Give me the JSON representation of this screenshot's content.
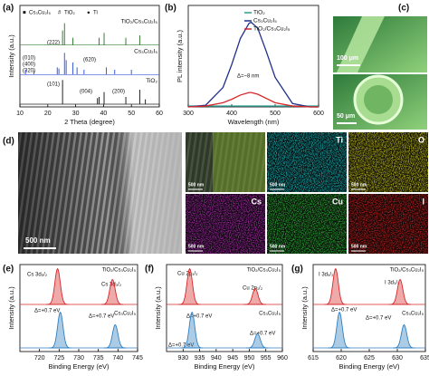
{
  "chart_data": [
    {
      "type": "stick",
      "panel": "(a)",
      "xlabel": "2 Theta (degree)",
      "ylabel": "Intensity (a.u.)",
      "xlim": [
        10,
        60
      ],
      "xticks": [
        10,
        20,
        30,
        40,
        50,
        60
      ],
      "markers": [
        {
          "symbol": "■",
          "text": "Cs₃Cu₂I₅",
          "color": "#2ca02c"
        },
        {
          "symbol": "#",
          "text": "TiO₂",
          "color": "#d62728"
        },
        {
          "symbol": "●",
          "text": "Ti",
          "color": "#000000"
        }
      ],
      "series": [
        {
          "name": "TiO₂/Cs₃Cu₂I₅",
          "color": "#3a7d3a",
          "x": [
            25.3,
            26,
            29,
            38.4,
            40.2,
            48,
            53
          ],
          "values": [
            0.6,
            0.9,
            0.3,
            0.3,
            0.5,
            0.3,
            0.4
          ]
        },
        {
          "name": "Cs₃Cu₂I₅",
          "color": "#3b5bdb",
          "x": [
            12,
            15,
            23.4,
            24,
            26,
            26.6,
            29,
            30.5,
            33,
            41,
            44,
            50
          ],
          "values": [
            0.2,
            0.15,
            0.3,
            0.25,
            0.9,
            0.6,
            0.5,
            0.3,
            0.2,
            0.3,
            0.2,
            0.2
          ]
        },
        {
          "name": "TiO₂",
          "color": "#222222",
          "x": [
            25.3,
            37.8,
            38.4,
            40.2,
            48,
            53,
            55
          ],
          "values": [
            1.0,
            0.25,
            0.3,
            0.5,
            0.3,
            0.6,
            0.2
          ]
        }
      ],
      "annotations": [
        "(222)",
        "(010)",
        "(400)",
        "(320)",
        "(620)",
        "(101)",
        "(004)",
        "(200)"
      ]
    },
    {
      "type": "line",
      "panel": "(b)",
      "xlabel": "Wavelength (nm)",
      "ylabel": "PL intensity (a.u.)",
      "xlim": [
        300,
        600
      ],
      "xticks": [
        300,
        400,
        500,
        600
      ],
      "ylim": [
        0,
        1.2
      ],
      "series": [
        {
          "name": "TiO₂",
          "color": "#2a9d8f",
          "x": [
            300,
            340,
            380,
            400,
            420,
            440,
            445,
            460,
            480,
            500,
            540,
            580,
            600
          ],
          "values": [
            0.01,
            0.01,
            0.01,
            0.01,
            0.01,
            0.01,
            0.01,
            0.01,
            0.01,
            0.01,
            0.01,
            0.01,
            0.01
          ]
        },
        {
          "name": "Cs₃Cu₂I₅",
          "color": "#1f2f8a",
          "x": [
            300,
            340,
            380,
            400,
            420,
            440,
            445,
            460,
            480,
            500,
            540,
            580,
            600
          ],
          "values": [
            0,
            0.02,
            0.23,
            0.5,
            0.81,
            0.99,
            1,
            0.93,
            0.65,
            0.35,
            0.04,
            0,
            0
          ]
        },
        {
          "name": "TiO₂/Cs₃Cu₂I₅",
          "color": "#d62728",
          "x": [
            300,
            340,
            380,
            400,
            420,
            440,
            445,
            460,
            480,
            500,
            540,
            580,
            600
          ],
          "values": [
            0,
            0.01,
            0.05,
            0.09,
            0.14,
            0.17,
            0.17,
            0.15,
            0.1,
            0.05,
            0.01,
            0,
            0
          ]
        }
      ],
      "annotations": [
        "Δ=~8 nm"
      ]
    },
    {
      "type": "peaks",
      "panel": "(e)",
      "xlabel": "Binding Energy (eV)",
      "ylabel": "Intensity (a.u.)",
      "xlim": [
        715,
        745
      ],
      "xticks": [
        720,
        725,
        730,
        735,
        740,
        745
      ],
      "series": [
        {
          "name": "TiO₂/Cs₃Cu₂I₅",
          "color": "#d62728",
          "x": [
            724.6,
            738.6
          ],
          "values": [
            1.0,
            0.7
          ]
        },
        {
          "name": "Cs₃Cu₂I₅",
          "color": "#2f7fc1",
          "x": [
            725.3,
            739.3
          ],
          "values": [
            1.0,
            0.65
          ]
        }
      ],
      "annotations": [
        "Cs 3d₅/₂",
        "Cs 3d₃/₂",
        "Δ=+0.7 eV",
        "Δ=+0.7 eV"
      ]
    },
    {
      "type": "peaks",
      "panel": "(f)",
      "xlabel": "Binding Energy (eV)",
      "ylabel": "Intensity (a.u.)",
      "xlim": [
        925,
        960
      ],
      "xticks": [
        930,
        935,
        940,
        945,
        950,
        955,
        960
      ],
      "series": [
        {
          "name": "TiO₂/Cs₃Cu₂I₅",
          "color": "#d62728",
          "x": [
            932,
            951.8
          ],
          "values": [
            1.0,
            0.45
          ]
        },
        {
          "name": "Cs₃Cu₂I₅",
          "color": "#2f7fc1",
          "x": [
            932.7,
            952.5
          ],
          "values": [
            1.0,
            0.4
          ]
        }
      ],
      "annotations": [
        "Cu 2p₃/₂",
        "Cu 2p₁/₂",
        "Δ=+0.7 eV",
        "Δ=+0.7 eV",
        "Δ=+0.7 eV"
      ]
    },
    {
      "type": "peaks",
      "panel": "(g)",
      "xlabel": "Binding Energy (eV)",
      "ylabel": "Intensity (a.u.)",
      "xlim": [
        615,
        635
      ],
      "xticks": [
        615,
        620,
        625,
        630,
        635
      ],
      "series": [
        {
          "name": "TiO₂/Cs₃Cu₂I₅",
          "color": "#d62728",
          "x": [
            619,
            630.5
          ],
          "values": [
            1.0,
            0.7
          ]
        },
        {
          "name": "Cs₃Cu₂I₅",
          "color": "#2f7fc1",
          "x": [
            619.7,
            631.2
          ],
          "values": [
            1.0,
            0.65
          ]
        }
      ],
      "annotations": [
        "I 3d₅/₂",
        "I 3d₃/₂",
        "Δ=+0.7 eV",
        "Δ=+0.7 eV"
      ]
    }
  ],
  "panel_c": {
    "label": "(c)",
    "scales": [
      "100 μm",
      "50 μm"
    ]
  },
  "panel_d": {
    "label": "(d)",
    "sem_scale": "500 nm",
    "overlay_scale": "500 nm",
    "maps": [
      {
        "element": "Ti",
        "color": "#19c3c8",
        "scale": "500 nm"
      },
      {
        "element": "O",
        "color": "#d8d21c",
        "scale": "500 nm"
      },
      {
        "element": "Cs",
        "color": "#b52bb8",
        "scale": "500 nm"
      },
      {
        "element": "Cu",
        "color": "#2fbf3a",
        "scale": "500 nm"
      },
      {
        "element": "I",
        "color": "#d02020",
        "scale": "500 nm"
      }
    ]
  }
}
